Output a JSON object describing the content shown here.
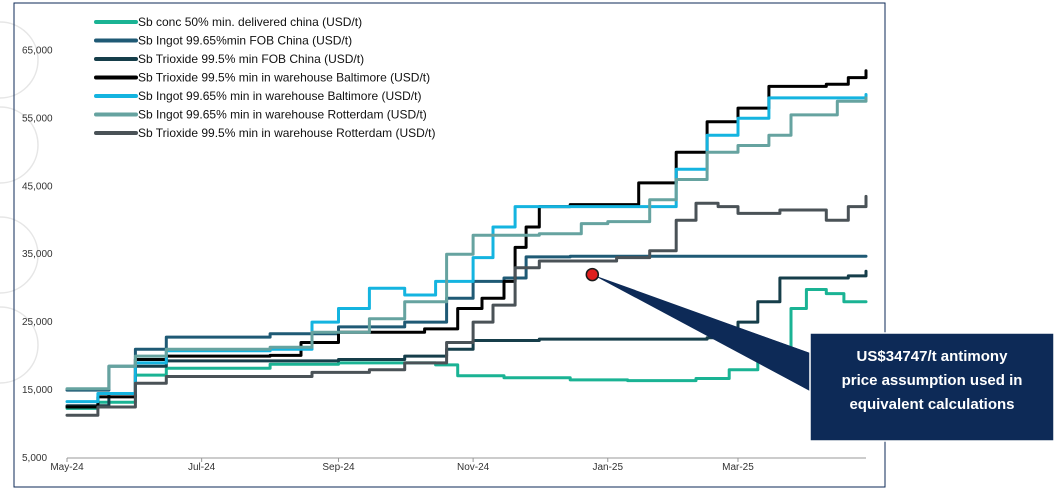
{
  "chart_data": {
    "type": "line",
    "title": "",
    "xlabel": "",
    "ylabel": "",
    "ylim": [
      5000,
      68000
    ],
    "grid": false,
    "legend_position": "top-left",
    "x_ticks": [
      "May-24",
      "Jul-24",
      "Sep-24",
      "Nov-24",
      "Jan-25",
      "Mar-25"
    ],
    "y_ticks": [
      "5,000",
      "15,000",
      "25,000",
      "35,000",
      "45,000",
      "55,000",
      "65,000"
    ],
    "x_range": [
      "2024-05-01",
      "2025-04-28"
    ],
    "series": [
      {
        "name": "Sb conc 50% min. delivered china (USD/t)",
        "color": "#1ab394",
        "points": [
          [
            "2024-05-01",
            12300
          ],
          [
            "2024-05-15",
            13200
          ],
          [
            "2024-06-01",
            17200
          ],
          [
            "2024-06-15",
            18200
          ],
          [
            "2024-07-01",
            18200
          ],
          [
            "2024-08-01",
            18800
          ],
          [
            "2024-09-01",
            19000
          ],
          [
            "2024-10-01",
            19000
          ],
          [
            "2024-10-15",
            18700
          ],
          [
            "2024-10-25",
            17100
          ],
          [
            "2024-11-15",
            16800
          ],
          [
            "2024-12-15",
            16500
          ],
          [
            "2025-01-10",
            16400
          ],
          [
            "2025-02-10",
            16700
          ],
          [
            "2025-02-25",
            18000
          ],
          [
            "2025-03-10",
            21000
          ],
          [
            "2025-03-25",
            27000
          ],
          [
            "2025-04-01",
            29800
          ],
          [
            "2025-04-10",
            29200
          ],
          [
            "2025-04-18",
            28000
          ],
          [
            "2025-04-28",
            28000
          ]
        ]
      },
      {
        "name": "Sb Ingot 99.65%min FOB China  (USD/t)",
        "color": "#1f5a75",
        "points": [
          [
            "2024-05-01",
            15000
          ],
          [
            "2024-05-20",
            18500
          ],
          [
            "2024-06-01",
            21000
          ],
          [
            "2024-06-15",
            22800
          ],
          [
            "2024-07-15",
            22800
          ],
          [
            "2024-08-01",
            23300
          ],
          [
            "2024-09-01",
            24300
          ],
          [
            "2024-10-01",
            25000
          ],
          [
            "2024-10-20",
            28500
          ],
          [
            "2024-11-01",
            31000
          ],
          [
            "2024-11-15",
            31500
          ],
          [
            "2024-11-25",
            34600
          ],
          [
            "2024-12-15",
            34700
          ],
          [
            "2025-04-28",
            34700
          ]
        ]
      },
      {
        "name": "Sb Trioxide 99.5% min FOB China  (USD/t)",
        "color": "#163e4a",
        "points": [
          [
            "2024-05-01",
            12700
          ],
          [
            "2024-05-20",
            14500
          ],
          [
            "2024-06-01",
            18500
          ],
          [
            "2024-06-15",
            19300
          ],
          [
            "2024-08-01",
            19300
          ],
          [
            "2024-09-01",
            19500
          ],
          [
            "2024-10-01",
            20000
          ],
          [
            "2024-10-20",
            21000
          ],
          [
            "2024-11-01",
            22300
          ],
          [
            "2024-12-01",
            22500
          ],
          [
            "2025-02-15",
            22700
          ],
          [
            "2025-03-01",
            25000
          ],
          [
            "2025-03-10",
            28000
          ],
          [
            "2025-03-20",
            31500
          ],
          [
            "2025-04-20",
            31800
          ],
          [
            "2025-04-28",
            32500
          ]
        ]
      },
      {
        "name": "Sb Trioxide 99.5% min in warehouse Baltimore  (USD/t)",
        "color": "#000000",
        "points": [
          [
            "2024-05-01",
            12500
          ],
          [
            "2024-05-15",
            14000
          ],
          [
            "2024-06-01",
            19500
          ],
          [
            "2024-06-15",
            20000
          ],
          [
            "2024-08-01",
            20100
          ],
          [
            "2024-08-15",
            22000
          ],
          [
            "2024-09-01",
            23500
          ],
          [
            "2024-09-15",
            23500
          ],
          [
            "2024-10-10",
            24000
          ],
          [
            "2024-10-25",
            27000
          ],
          [
            "2024-11-05",
            28500
          ],
          [
            "2024-11-15",
            31000
          ],
          [
            "2024-11-20",
            36000
          ],
          [
            "2024-11-25",
            39000
          ],
          [
            "2024-12-01",
            42000
          ],
          [
            "2024-12-15",
            42300
          ],
          [
            "2025-01-01",
            42300
          ],
          [
            "2025-01-15",
            45500
          ],
          [
            "2025-02-01",
            50000
          ],
          [
            "2025-02-15",
            54500
          ],
          [
            "2025-03-01",
            56500
          ],
          [
            "2025-03-15",
            59700
          ],
          [
            "2025-04-10",
            60000
          ],
          [
            "2025-04-20",
            61000
          ],
          [
            "2025-04-28",
            62000
          ]
        ]
      },
      {
        "name": "Sb Ingot 99.65% min in warehouse Baltimore  (USD/t)",
        "color": "#14b4e0",
        "points": [
          [
            "2024-05-01",
            13300
          ],
          [
            "2024-05-15",
            14500
          ],
          [
            "2024-06-01",
            19000
          ],
          [
            "2024-06-15",
            20800
          ],
          [
            "2024-08-01",
            21000
          ],
          [
            "2024-08-20",
            25000
          ],
          [
            "2024-09-01",
            27000
          ],
          [
            "2024-09-15",
            30000
          ],
          [
            "2024-10-01",
            29000
          ],
          [
            "2024-10-15",
            31000
          ],
          [
            "2024-11-01",
            34500
          ],
          [
            "2024-11-10",
            39000
          ],
          [
            "2024-11-20",
            42000
          ],
          [
            "2024-12-15",
            42000
          ],
          [
            "2025-01-15",
            42000
          ],
          [
            "2025-02-01",
            47500
          ],
          [
            "2025-02-15",
            52500
          ],
          [
            "2025-03-01",
            55000
          ],
          [
            "2025-03-15",
            58000
          ],
          [
            "2025-04-28",
            58500
          ]
        ]
      },
      {
        "name": "Sb Ingot 99.65% min in warehouse Rotterdam  (USD/t)",
        "color": "#66a3a0",
        "points": [
          [
            "2024-05-01",
            15200
          ],
          [
            "2024-05-20",
            18500
          ],
          [
            "2024-06-01",
            20000
          ],
          [
            "2024-06-15",
            21000
          ],
          [
            "2024-08-01",
            21300
          ],
          [
            "2024-08-20",
            23500
          ],
          [
            "2024-09-15",
            25500
          ],
          [
            "2024-10-01",
            28000
          ],
          [
            "2024-10-20",
            35000
          ],
          [
            "2024-11-01",
            37800
          ],
          [
            "2024-11-20",
            37800
          ],
          [
            "2024-12-01",
            38000
          ],
          [
            "2024-12-20",
            39500
          ],
          [
            "2025-01-01",
            39800
          ],
          [
            "2025-01-20",
            43000
          ],
          [
            "2025-02-01",
            46000
          ],
          [
            "2025-02-15",
            50000
          ],
          [
            "2025-03-01",
            51000
          ],
          [
            "2025-03-15",
            52500
          ],
          [
            "2025-03-25",
            55500
          ],
          [
            "2025-04-15",
            57500
          ],
          [
            "2025-04-28",
            58000
          ]
        ]
      },
      {
        "name": "Sb Trioxide 99.5% min in warehouse Rotterdam  (USD/t)",
        "color": "#4a5257",
        "points": [
          [
            "2024-05-01",
            11300
          ],
          [
            "2024-05-15",
            12500
          ],
          [
            "2024-06-01",
            16000
          ],
          [
            "2024-06-15",
            17000
          ],
          [
            "2024-08-01",
            17000
          ],
          [
            "2024-08-20",
            17600
          ],
          [
            "2024-09-15",
            18000
          ],
          [
            "2024-10-01",
            19000
          ],
          [
            "2024-10-20",
            22000
          ],
          [
            "2024-11-01",
            25000
          ],
          [
            "2024-11-10",
            27500
          ],
          [
            "2024-11-20",
            33000
          ],
          [
            "2024-12-01",
            34000
          ],
          [
            "2024-12-20",
            34000
          ],
          [
            "2025-01-05",
            34500
          ],
          [
            "2025-01-20",
            35500
          ],
          [
            "2025-02-01",
            40000
          ],
          [
            "2025-02-10",
            42500
          ],
          [
            "2025-02-20",
            42000
          ],
          [
            "2025-03-01",
            41000
          ],
          [
            "2025-03-20",
            41500
          ],
          [
            "2025-04-01",
            41500
          ],
          [
            "2025-04-10",
            40000
          ],
          [
            "2025-04-20",
            42000
          ],
          [
            "2025-04-28",
            43500
          ]
        ]
      }
    ],
    "annotation": {
      "date": "2024-12-25",
      "value": 32000,
      "marker_color": "#e0201e",
      "box_color": "#0d2a57",
      "text_lines": [
        "US$34747/t antimony",
        "price assumption used in",
        "equivalent calculations"
      ]
    }
  }
}
